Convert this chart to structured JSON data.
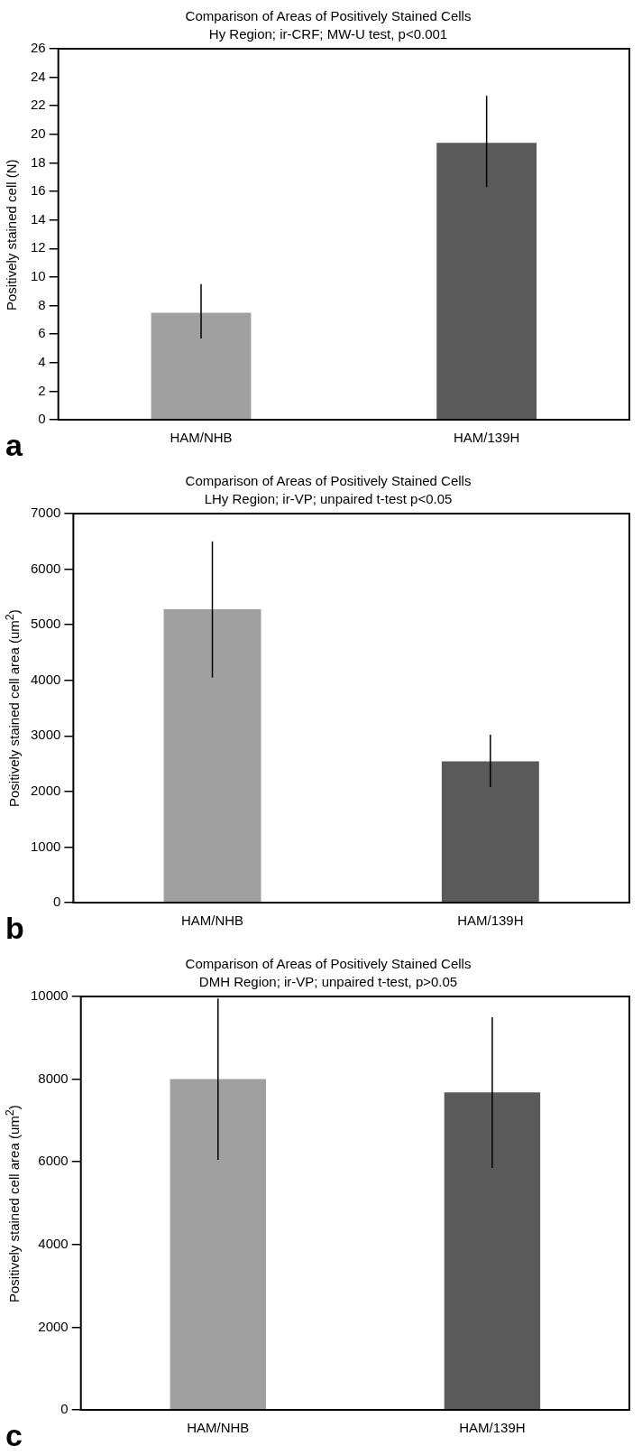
{
  "chart_data": [
    {
      "type": "bar",
      "title": "Comparison of Areas of Positively Stained Cells",
      "subtitle": "Hy Region; ir-CRF; MW-U test, p<0.001",
      "ylabel": "Positively stained cell (N)",
      "categories": [
        "HAM/NHB",
        "HAM/139H"
      ],
      "values": [
        7.5,
        19.4
      ],
      "colors": [
        "#a0a0a0",
        "#5a5a5a"
      ],
      "errors": [
        [
          5.7,
          9.5
        ],
        [
          16.3,
          22.7
        ]
      ],
      "ylim": [
        0,
        26
      ],
      "yticks": [
        0,
        2,
        4,
        6,
        8,
        10,
        12,
        14,
        16,
        18,
        20,
        22,
        24,
        26
      ],
      "grid": false,
      "legend": false,
      "annotations": [
        "a"
      ]
    },
    {
      "type": "bar",
      "title": "Comparison of Areas of Positively Stained Cells",
      "subtitle": "LHy Region; ir-VP; unpaired t-test p<0.05",
      "ylabel": "Positively stained cell area (um$^{2}$)",
      "categories": [
        "HAM/NHB",
        "HAM/139H"
      ],
      "values": [
        5280,
        2540
      ],
      "colors": [
        "#a0a0a0",
        "#5a5a5a"
      ],
      "errors": [
        [
          4050,
          6500
        ],
        [
          2080,
          3020
        ]
      ],
      "ylim": [
        0,
        7000
      ],
      "yticks": [
        0,
        1000,
        2000,
        3000,
        4000,
        5000,
        6000,
        7000
      ],
      "grid": false,
      "legend": false,
      "annotations": [
        "b"
      ]
    },
    {
      "type": "bar",
      "title": "Comparison of Areas of Positively Stained Cells",
      "subtitle": "DMH Region; ir-VP; unpaired t-test, p>0.05",
      "ylabel": "Positively stained cell area (um$^{2}$)",
      "categories": [
        "HAM/NHB",
        "HAM/139H"
      ],
      "values": [
        8000,
        7680
      ],
      "colors": [
        "#a0a0a0",
        "#5a5a5a"
      ],
      "errors": [
        [
          6050,
          9950
        ],
        [
          5850,
          9500
        ]
      ],
      "ylim": [
        0,
        10000
      ],
      "yticks": [
        0,
        2000,
        4000,
        6000,
        8000,
        10000
      ],
      "grid": false,
      "legend": false,
      "annotations": [
        "c"
      ]
    }
  ]
}
